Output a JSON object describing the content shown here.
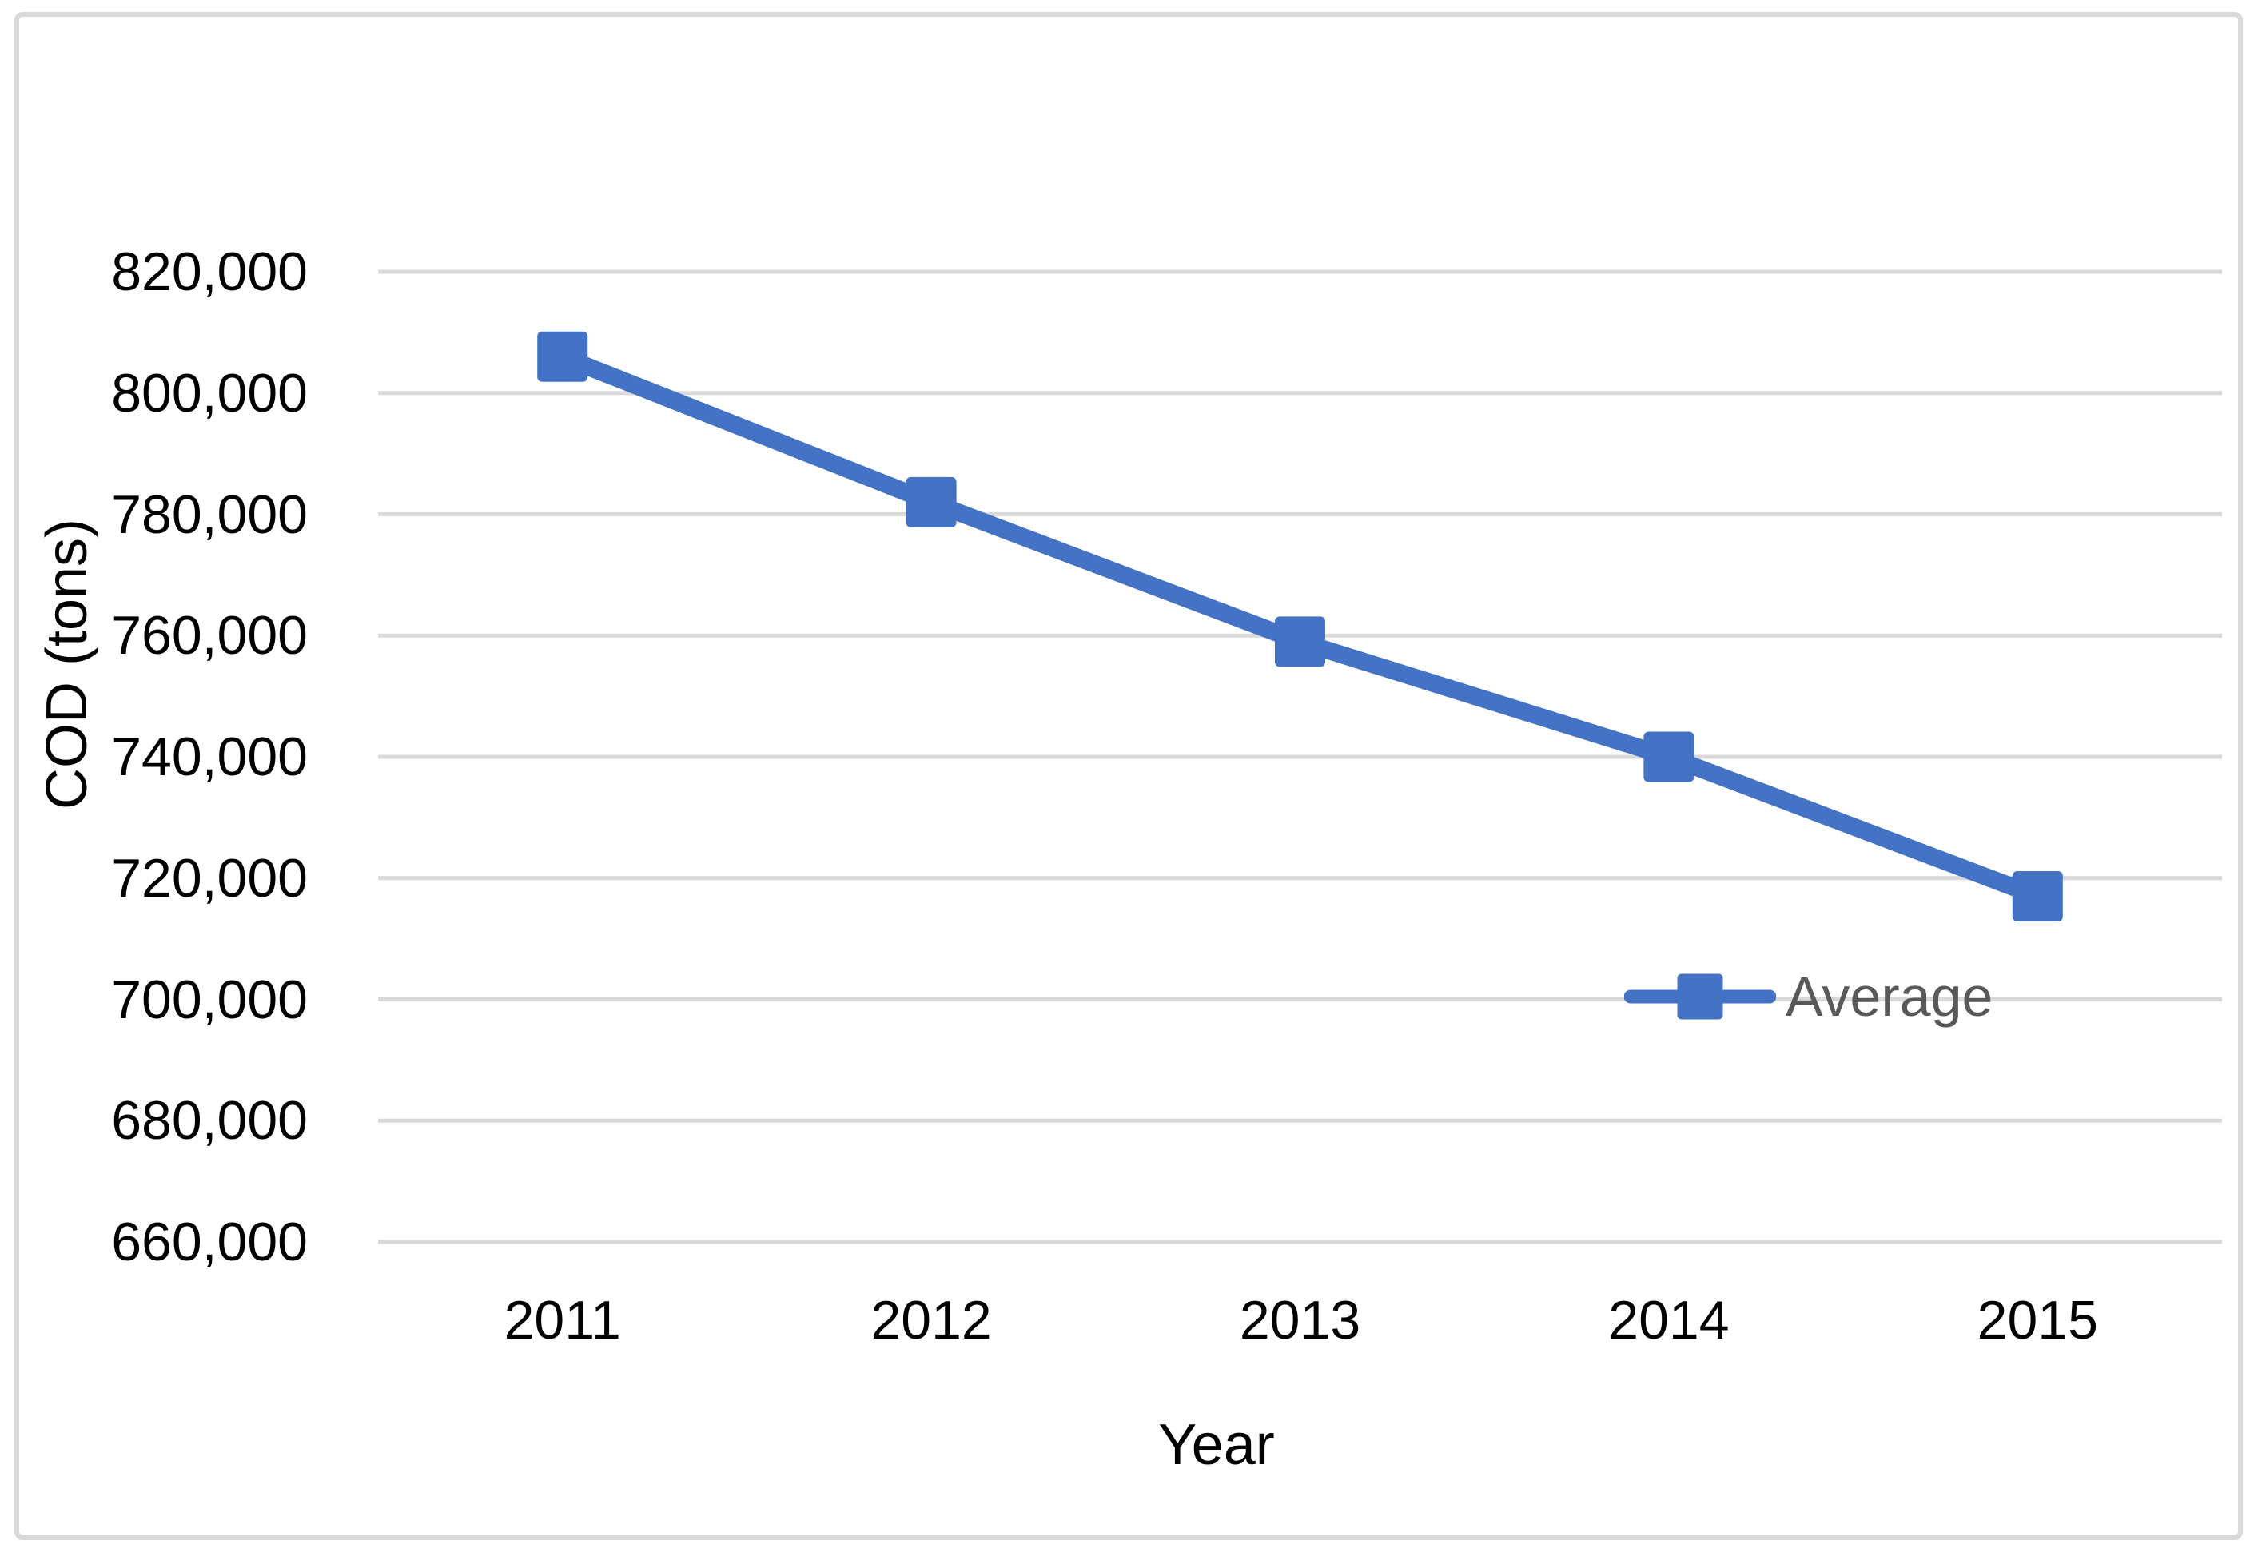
{
  "chart_data": {
    "type": "line",
    "title": "",
    "xlabel": "Year",
    "ylabel": "COD (tons)",
    "categories": [
      "2011",
      "2012",
      "2013",
      "2014",
      "2015"
    ],
    "series": [
      {
        "name": "Average",
        "values": [
          806000,
          782000,
          759000,
          740000,
          717000
        ]
      }
    ],
    "ylim": [
      660000,
      820000
    ],
    "ytick_step": 20000,
    "y_tick_labels": [
      "660,000",
      "680,000",
      "700,000",
      "720,000",
      "740,000",
      "760,000",
      "780,000",
      "800,000",
      "820,000"
    ],
    "grid": "horizontal",
    "legend": {
      "label": "Average",
      "position": "inside-right"
    },
    "colors": {
      "series": "#4472C4",
      "gridline": "#D9D9D9",
      "chart_border": "#D9D9D9",
      "axis_text": "#000000",
      "legend_text": "#595959",
      "background": "#FFFFFF"
    }
  }
}
